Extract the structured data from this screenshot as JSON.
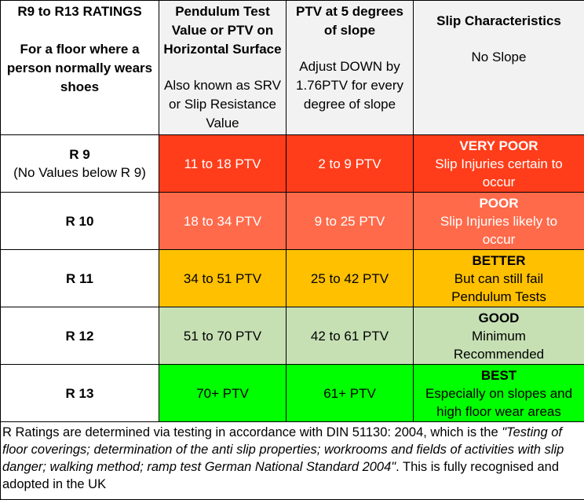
{
  "header": {
    "col1": {
      "title": "R9 to R13 RATINGS",
      "subtitle_1": "For a floor where a",
      "subtitle_2": "person normally wears",
      "subtitle_3": "shoes"
    },
    "col2": {
      "title_1": "Pendulum Test",
      "title_2": "Value or PTV on",
      "title_3": "Horizontal Surface",
      "note_1": "Also known as SRV",
      "note_2": "or Slip Resistance",
      "note_3": "Value"
    },
    "col3": {
      "title_1": "PTV at 5 degrees",
      "title_2": "of slope",
      "note_1": "Adjust DOWN by",
      "note_2": "1.76PTV for every",
      "note_3": "degree of slope"
    },
    "col4": {
      "title": "Slip Characteristics",
      "note": "No Slope"
    }
  },
  "rows": [
    {
      "rating": "R 9",
      "rating_note": "(No Values below R 9)",
      "ptv": "11 to 18 PTV",
      "ptv_slope": "2 to 9 PTV",
      "grade": "VERY POOR",
      "desc_1": "Slip Injuries certain to",
      "desc_2": "occur"
    },
    {
      "rating": "R 10",
      "rating_note": "",
      "ptv": "18 to 34 PTV",
      "ptv_slope": "9 to 25 PTV",
      "grade": "POOR",
      "desc_1": "Slip Injuries likely to",
      "desc_2": "occur"
    },
    {
      "rating": "R 11",
      "rating_note": "",
      "ptv": "34 to 51 PTV",
      "ptv_slope": "25 to 42 PTV",
      "grade": "BETTER",
      "desc_1": "But can still fail",
      "desc_2": "Pendulum Tests"
    },
    {
      "rating": "R 12",
      "rating_note": "",
      "ptv": "51 to 70 PTV",
      "ptv_slope": "42 to 61 PTV",
      "grade": "GOOD",
      "desc_1": "Minimum",
      "desc_2": "Recommended"
    },
    {
      "rating": "R 13",
      "rating_note": "",
      "ptv": "70+ PTV",
      "ptv_slope": "61+ PTV",
      "grade": "BEST",
      "desc_1": "Especially on slopes and",
      "desc_2": "high floor wear areas"
    }
  ],
  "footer": {
    "lead": "R Ratings are determined via testing in accordance with DIN 51130: 2004, which is the ",
    "italic": "\"Testing of floor coverings; determination of the anti slip properties; workrooms and fields of activities with slip danger; walking method; ramp test German National Standard 2004\"",
    "tail": ". This is fully recognised and adopted in the UK"
  },
  "colors": {
    "r9": "#ff3d1a",
    "r10": "#ff6a4a",
    "r11": "#ffc000",
    "r12": "#c6e0b4",
    "r13": "#00ff00",
    "header_bg": "#f2f2f2"
  }
}
